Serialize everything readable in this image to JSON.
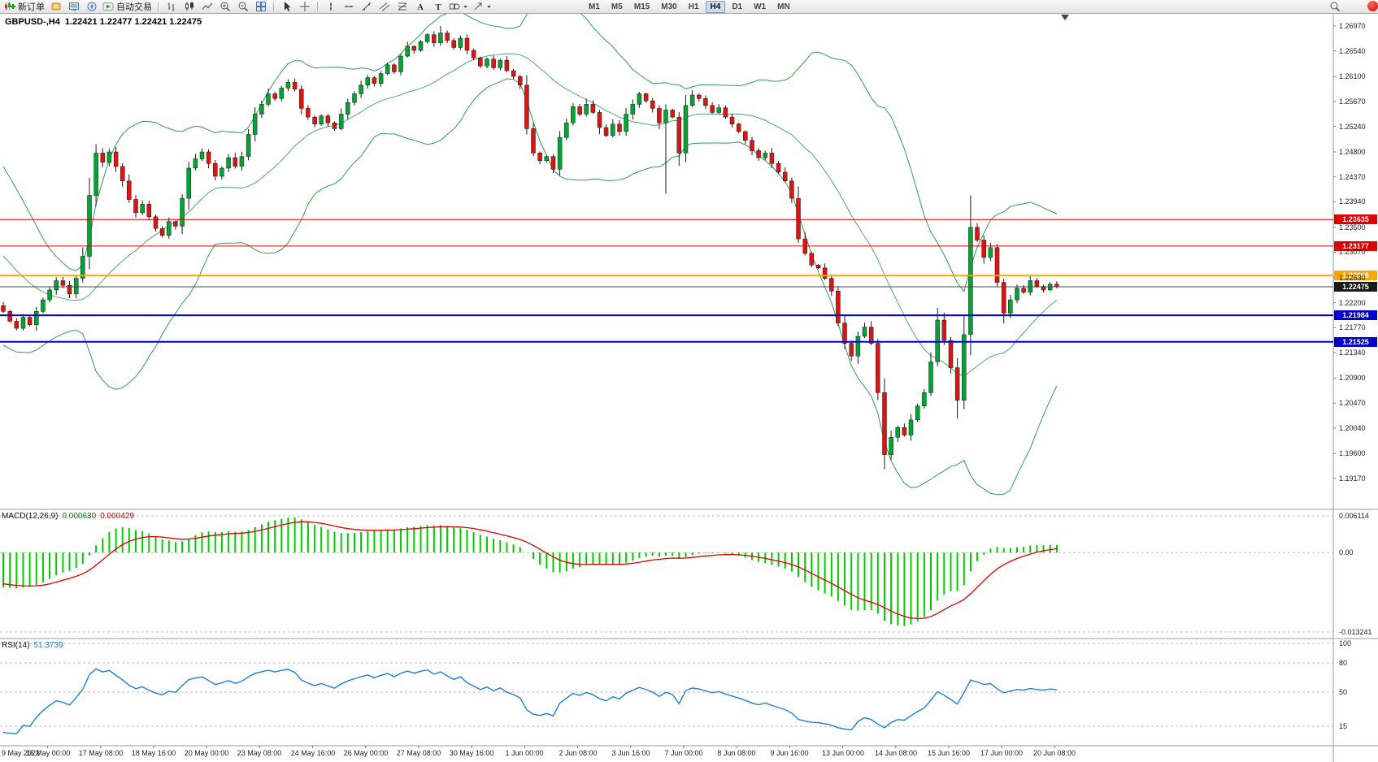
{
  "toolbar": {
    "new_order_label": "新订单",
    "auto_trading_label": "自动交易",
    "timeframes": [
      "M1",
      "M5",
      "M15",
      "M30",
      "H1",
      "H4",
      "D1",
      "W1",
      "MN"
    ],
    "active_timeframe": "H4",
    "icons": {
      "new_order": "candles-plus",
      "data_window": "yellow-panel",
      "market_watch": "blue-monitor",
      "navigator": "compass",
      "auto_trading": "green-play",
      "chart_bars": "bars",
      "chart_candles": "candles",
      "chart_line": "zigzag",
      "zoom_in": "magnifier-plus",
      "zoom_out": "magnifier-minus",
      "tile_windows": "grid",
      "cursor": "arrow",
      "crosshair": "cross",
      "vertical_line": "vline",
      "horizontal_line": "hline",
      "trendline": "diagonal",
      "channel": "parallel-lines",
      "fibonacci": "stacked-lines",
      "text": "letter-A",
      "label": "letter-T",
      "shapes": "rect-ellipse",
      "arrows": "arrow-ne",
      "search": "magnifier",
      "notification": "red-circle"
    }
  },
  "chart": {
    "symbol_title": "GBPUSD-,H4",
    "ohlc": "1.22421 1.22477 1.22421 1.22475",
    "price_axis_labels": [
      "1.26970",
      "1.26540",
      "1.26100",
      "1.25670",
      "1.25240",
      "1.24800",
      "1.24370",
      "1.23940",
      "1.23500",
      "1.23070",
      "1.22630",
      "1.22200",
      "1.21770",
      "1.21340",
      "1.20900",
      "1.20470",
      "1.20040",
      "1.19600",
      "1.19170"
    ],
    "horizontal_lines": [
      {
        "price": 1.23635,
        "label": "1.23635",
        "color": "#dd0000",
        "width": 1
      },
      {
        "price": 1.23177,
        "label": "1.23177",
        "color": "#dd0000",
        "width": 1
      },
      {
        "price": 1.22666,
        "label": "1.22666",
        "color": "#f5a800",
        "width": 2
      },
      {
        "price": 1.21984,
        "label": "1.21984",
        "color": "#0000cc",
        "width": 2
      },
      {
        "price": 1.21525,
        "label": "1.21525",
        "color": "#0000cc",
        "width": 2
      }
    ],
    "current_price": {
      "price": 1.22475,
      "label": "1.22475",
      "color": "#1a1a1a"
    }
  },
  "chart_data": {
    "type": "candlestick",
    "symbol": "GBPUSD",
    "timeframe": "H4",
    "ylim": [
      1.1917,
      1.2697
    ],
    "colors": {
      "bull": "#00a432",
      "bear": "#dc1414",
      "bands": "#2e9e4f",
      "macd_hist": "#00cc00",
      "macd_signal": "#e00000",
      "rsi": "#1e7fd6"
    },
    "warmup_closes": [
      1.2455,
      1.244,
      1.2428,
      1.241,
      1.2395,
      1.238,
      1.2365,
      1.234,
      1.2322,
      1.2305,
      1.229,
      1.2278,
      1.2262,
      1.2248,
      1.223,
      1.2218,
      1.2225,
      1.224,
      1.2222,
      1.221
    ],
    "first_open": 1.2215,
    "closes": [
      1.2205,
      1.2188,
      1.2176,
      1.2195,
      1.2182,
      1.2205,
      1.2225,
      1.2242,
      1.2258,
      1.225,
      1.2235,
      1.2262,
      1.23,
      1.2405,
      1.2478,
      1.2462,
      1.248,
      1.2455,
      1.243,
      1.2398,
      1.2375,
      1.239,
      1.2368,
      1.2348,
      1.2336,
      1.236,
      1.2352,
      1.24,
      1.2452,
      1.2468,
      1.248,
      1.246,
      1.2438,
      1.2452,
      1.247,
      1.2455,
      1.2472,
      1.251,
      1.2545,
      1.2562,
      1.258,
      1.2572,
      1.259,
      1.26,
      1.2588,
      1.2555,
      1.254,
      1.2528,
      1.2542,
      1.253,
      1.252,
      1.2545,
      1.2565,
      1.258,
      1.2595,
      1.2608,
      1.2598,
      1.2615,
      1.263,
      1.2618,
      1.2645,
      1.2662,
      1.2655,
      1.267,
      1.2682,
      1.2668,
      1.2685,
      1.2672,
      1.266,
      1.2676,
      1.2655,
      1.2642,
      1.2628,
      1.264,
      1.2625,
      1.2638,
      1.262,
      1.261,
      1.2595,
      1.252,
      1.2478,
      1.2465,
      1.2472,
      1.245,
      1.2505,
      1.253,
      1.2558,
      1.2545,
      1.2562,
      1.2548,
      1.2522,
      1.2508,
      1.2528,
      1.2515,
      1.2545,
      1.2562,
      1.258,
      1.2568,
      1.2555,
      1.253,
      1.2552,
      1.254,
      1.2478,
      1.256,
      1.2578,
      1.2572,
      1.256,
      1.2548,
      1.2556,
      1.254,
      1.2528,
      1.2515,
      1.25,
      1.2482,
      1.247,
      1.2478,
      1.246,
      1.2445,
      1.243,
      1.24,
      1.233,
      1.2305,
      1.2285,
      1.228,
      1.2262,
      1.224,
      1.2185,
      1.215,
      1.2128,
      1.2162,
      1.2178,
      1.215,
      1.2065,
      1.1958,
      1.1988,
      1.2005,
      1.1992,
      1.2018,
      1.2042,
      1.2065,
      1.2118,
      1.219,
      1.2155,
      1.2108,
      1.2052,
      1.2165,
      1.235,
      1.2328,
      1.2298,
      1.2315,
      1.2255,
      1.2202,
      1.2225,
      1.2245,
      1.2238,
      1.2258,
      1.2248,
      1.2242,
      1.2252,
      1.22475
    ],
    "wick_overrides": {
      "66": {
        "high": 1.2697
      },
      "79": {
        "high": 1.2612
      },
      "100": {
        "low": 1.2408
      },
      "133": {
        "low": 1.1933
      },
      "144": {
        "low": 1.202
      },
      "146": {
        "high": 1.2405
      }
    },
    "indicators": {
      "bollinger": {
        "period": 20,
        "deviation": 2
      },
      "macd": {
        "label": "MACD(12,26,9)",
        "fast": 12,
        "slow": 26,
        "signal": 9,
        "value_main": "0.000630",
        "value_signal": "0.000429",
        "axis_max": "0.006114",
        "axis_zero": "0.00",
        "axis_min": "-0.013241"
      },
      "rsi": {
        "label": "RSI(14)",
        "period": 14,
        "value": "51.3739",
        "axis_labels": [
          "100",
          "80",
          "50",
          "15"
        ],
        "levels": [
          100,
          80,
          50,
          15
        ]
      }
    }
  },
  "time_axis": {
    "labels": [
      "9 May 2022",
      "16 May 00:00",
      "17 May 08:00",
      "18 May 16:00",
      "20 May 00:00",
      "23 May 08:00",
      "24 May 16:00",
      "26 May 00:00",
      "27 May 08:00",
      "30 May 16:00",
      "1 Jun 00:00",
      "2 Jun 08:00",
      "3 Jun 16:00",
      "7 Jun 00:00",
      "8 Jun 08:00",
      "9 Jun 16:00",
      "13 Jun 00:00",
      "14 Jun 08:00",
      "15 Jun 16:00",
      "17 Jun 00:00",
      "20 Jun 08:00"
    ]
  }
}
